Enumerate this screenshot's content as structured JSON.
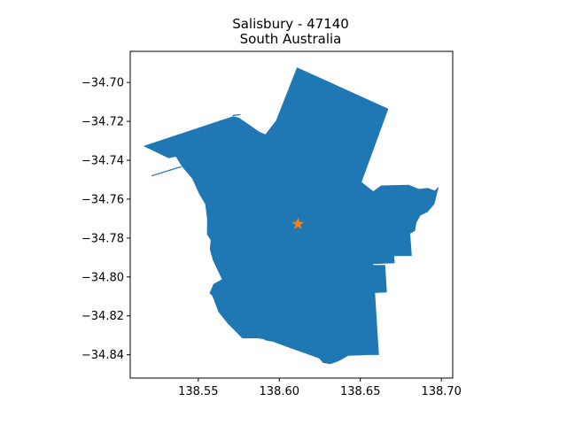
{
  "chart_data": {
    "type": "map",
    "title": [
      "Salisbury - 47140",
      "South Australia"
    ],
    "xlim": [
      138.508,
      138.707
    ],
    "ylim": [
      -34.852,
      -34.684
    ],
    "xticks": [
      {
        "value": 138.55,
        "label": "138.55"
      },
      {
        "value": 138.6,
        "label": "138.60"
      },
      {
        "value": 138.65,
        "label": "138.65"
      },
      {
        "value": 138.7,
        "label": "138.70"
      }
    ],
    "yticks": [
      {
        "value": -34.7,
        "label": "−34.70"
      },
      {
        "value": -34.72,
        "label": "−34.72"
      },
      {
        "value": -34.74,
        "label": "−34.74"
      },
      {
        "value": -34.76,
        "label": "−34.76"
      },
      {
        "value": -34.78,
        "label": "−34.78"
      },
      {
        "value": -34.8,
        "label": "−34.80"
      },
      {
        "value": -34.82,
        "label": "−34.82"
      },
      {
        "value": -34.84,
        "label": "−34.84"
      }
    ],
    "region": {
      "name": "Salisbury - 47140",
      "fill_color": "#1f77b4",
      "outline": [
        [
          138.5165,
          -34.7327
        ],
        [
          138.5715,
          -34.7175
        ],
        [
          138.5751,
          -34.7183
        ],
        [
          138.5877,
          -34.7255
        ],
        [
          138.5914,
          -34.7269
        ],
        [
          138.5981,
          -34.7197
        ],
        [
          138.611,
          -34.6924
        ],
        [
          138.6671,
          -34.7136
        ],
        [
          138.6506,
          -34.7513
        ],
        [
          138.658,
          -34.7561
        ],
        [
          138.6629,
          -34.7531
        ],
        [
          138.68,
          -34.7528
        ],
        [
          138.686,
          -34.7549
        ],
        [
          138.6917,
          -34.7544
        ],
        [
          138.696,
          -34.7557
        ],
        [
          138.6981,
          -34.7539
        ],
        [
          138.6955,
          -34.7625
        ],
        [
          138.6913,
          -34.7666
        ],
        [
          138.6869,
          -34.7683
        ],
        [
          138.6844,
          -34.7721
        ],
        [
          138.6836,
          -34.7762
        ],
        [
          138.6806,
          -34.7777
        ],
        [
          138.6816,
          -34.7891
        ],
        [
          138.6707,
          -34.7891
        ],
        [
          138.6711,
          -34.7928
        ],
        [
          138.6576,
          -34.7932
        ],
        [
          138.658,
          -34.794
        ],
        [
          138.6652,
          -34.794
        ],
        [
          138.6662,
          -34.8078
        ],
        [
          138.6589,
          -34.8081
        ],
        [
          138.6613,
          -34.84
        ],
        [
          138.6547,
          -34.84
        ],
        [
          138.6491,
          -34.8402
        ],
        [
          138.6423,
          -34.8404
        ],
        [
          138.6387,
          -34.8422
        ],
        [
          138.6358,
          -34.8434
        ],
        [
          138.6313,
          -34.8447
        ],
        [
          138.6269,
          -34.844
        ],
        [
          138.6247,
          -34.8418
        ],
        [
          138.6205,
          -34.8405
        ],
        [
          138.607,
          -34.8365
        ],
        [
          138.5941,
          -34.8325
        ],
        [
          138.5872,
          -34.8314
        ],
        [
          138.5772,
          -34.8314
        ],
        [
          138.5681,
          -34.8237
        ],
        [
          138.5626,
          -34.818
        ],
        [
          138.5588,
          -34.8096
        ],
        [
          138.5571,
          -34.8084
        ],
        [
          138.5595,
          -34.8037
        ],
        [
          138.5648,
          -34.8013
        ],
        [
          138.5625,
          -34.7972
        ],
        [
          138.5591,
          -34.7913
        ],
        [
          138.5573,
          -34.7858
        ],
        [
          138.5578,
          -34.781
        ],
        [
          138.5555,
          -34.778
        ],
        [
          138.5556,
          -34.7702
        ],
        [
          138.5544,
          -34.7625
        ],
        [
          138.5506,
          -34.7571
        ],
        [
          138.5464,
          -34.7494
        ],
        [
          138.5401,
          -34.7432
        ],
        [
          138.5362,
          -34.738
        ],
        [
          138.5317,
          -34.7388
        ]
      ],
      "spurs": [
        [
          [
            138.5395,
            -34.7433
          ],
          [
            138.5212,
            -34.748
          ]
        ],
        [
          [
            138.5712,
            -34.717
          ],
          [
            138.576,
            -34.7165
          ]
        ],
        [
          [
            138.591,
            -34.8322
          ],
          [
            138.5956,
            -34.833
          ]
        ]
      ]
    },
    "marker": {
      "type": "star",
      "x": 138.6115,
      "y": -34.7728,
      "color": "#ff7f0e"
    },
    "grid": false,
    "legend": "none"
  }
}
